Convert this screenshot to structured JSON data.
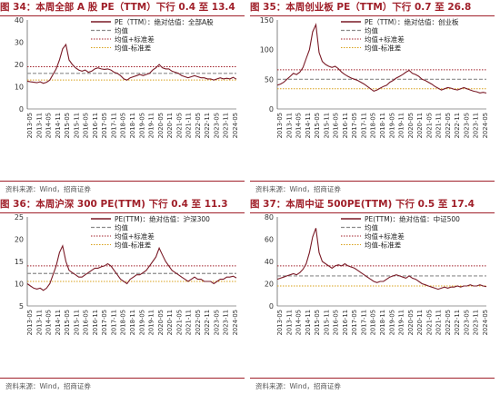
{
  "colors": {
    "title": "#a0202a",
    "pe_line": "#7a1a26",
    "mean_line": "#8c8c8c",
    "plus_std": "#a0202a",
    "minus_std": "#d8a018"
  },
  "source_text": "资料来源：Wind，招商证券",
  "panels": [
    {
      "title": "图 34：本周全部 A 股 PE（TTM）下行 0.4 至 13.4",
      "source": "资料来源：Wind，招商证券",
      "chart_data": {
        "type": "line",
        "ylim": [
          0,
          40
        ],
        "yticks": [
          0,
          10,
          20,
          30,
          40
        ],
        "x_tick_labels": [
          "2013-05",
          "2013-11",
          "2014-05",
          "2014-11",
          "2015-05",
          "2015-11",
          "2016-05",
          "2016-11",
          "2017-05",
          "2017-11",
          "2018-05",
          "2018-11",
          "2019-05",
          "2019-11",
          "2020-05",
          "2020-11",
          "2021-05",
          "2021-11",
          "2022-05",
          "2022-11",
          "2023-05",
          "2023-11",
          "2024-05"
        ],
        "legend": [
          "PE（TTM）：绝对估值：全部A股",
          "均值",
          "均值+标准差",
          "均值-标准差"
        ],
        "mean": 16.0,
        "plus_std": 19.0,
        "minus_std": 13.0,
        "series": [
          {
            "name": "PE（TTM）：绝对估值：全部A股",
            "values": [
              12.5,
              12.2,
              12.0,
              11.8,
              12.2,
              11.5,
              12.0,
              13.0,
              15.5,
              18.0,
              22.0,
              27.0,
              29.0,
              22.0,
              20.0,
              18.5,
              17.5,
              17.0,
              17.5,
              16.5,
              17.0,
              18.0,
              18.5,
              18.0,
              17.8,
              18.0,
              17.5,
              16.5,
              16.0,
              15.0,
              13.5,
              13.0,
              14.0,
              14.5,
              15.0,
              15.5,
              15.0,
              15.5,
              16.0,
              17.5,
              18.5,
              20.0,
              18.5,
              18.0,
              18.0,
              17.0,
              16.5,
              16.0,
              15.0,
              14.5,
              14.0,
              14.5,
              15.0,
              14.5,
              14.0,
              14.0,
              13.5,
              13.5,
              13.0,
              13.5,
              14.0,
              13.5,
              13.8,
              13.5,
              14.2,
              13.4
            ]
          }
        ]
      }
    },
    {
      "title": "图 35：本周创业板 PE（TTM）下行 0.7 至 26.8",
      "source": "资料来源：Wind，招商证券",
      "chart_data": {
        "type": "line",
        "ylim": [
          0,
          150
        ],
        "yticks": [
          0,
          50,
          100,
          150
        ],
        "x_tick_labels": [
          "2013-05",
          "2013-11",
          "2014-05",
          "2014-11",
          "2015-05",
          "2015-11",
          "2016-05",
          "2016-11",
          "2017-05",
          "2017-11",
          "2018-05",
          "2018-11",
          "2019-05",
          "2019-11",
          "2020-05",
          "2020-11",
          "2021-05",
          "2021-11",
          "2022-05",
          "2022-11",
          "2023-05",
          "2023-11",
          "2024-05"
        ],
        "legend": [
          "PE（TTM）：绝对估值：创业板",
          "均值",
          "均值+标准差",
          "均值-标准差"
        ],
        "mean": 50.0,
        "plus_std": 66.0,
        "minus_std": 34.0,
        "series": [
          {
            "name": "PE（TTM）：绝对估值：创业板",
            "values": [
              40,
              42,
              45,
              50,
              55,
              60,
              58,
              62,
              70,
              85,
              100,
              130,
              142,
              95,
              80,
              75,
              72,
              70,
              72,
              68,
              62,
              58,
              55,
              52,
              50,
              48,
              45,
              42,
              38,
              34,
              30,
              32,
              35,
              38,
              40,
              45,
              48,
              52,
              55,
              58,
              62,
              65,
              60,
              58,
              55,
              50,
              48,
              45,
              42,
              38,
              35,
              32,
              34,
              36,
              35,
              33,
              32,
              34,
              36,
              34,
              32,
              30,
              29,
              27,
              28,
              26.8
            ]
          }
        ]
      }
    },
    {
      "title": "图 36：本周沪深 300 PE(TTM) 下行 0.4 至 11.3",
      "source": "资料来源：Wind，招商证券",
      "chart_data": {
        "type": "line",
        "ylim": [
          5,
          25
        ],
        "yticks": [
          5,
          10,
          15,
          20,
          25
        ],
        "x_tick_labels": [
          "2013-05",
          "2013-11",
          "2014-05",
          "2014-11",
          "2015-05",
          "2015-11",
          "2016-05",
          "2016-11",
          "2017-05",
          "2017-11",
          "2018-05",
          "2018-11",
          "2019-05",
          "2019-11",
          "2020-05",
          "2020-11",
          "2021-05",
          "2021-11",
          "2022-05",
          "2022-11",
          "2023-05",
          "2023-11",
          "2024-05"
        ],
        "legend": [
          "PE(TTM)：绝对估值：沪深300",
          "均值",
          "均值+标准差",
          "均值-标准差"
        ],
        "mean": 12.3,
        "plus_std": 14.0,
        "minus_std": 10.5,
        "series": [
          {
            "name": "PE(TTM)：绝对估值：沪深300",
            "values": [
              10.0,
              9.5,
              9.0,
              8.8,
              9.0,
              8.5,
              9.0,
              10.0,
              12.0,
              14.0,
              17.0,
              18.5,
              15.0,
              13.0,
              12.5,
              12.0,
              11.5,
              11.5,
              12.0,
              12.5,
              13.0,
              13.5,
              13.5,
              13.8,
              14.0,
              14.5,
              14.0,
              13.0,
              12.0,
              11.0,
              10.5,
              10.0,
              11.0,
              11.5,
              12.0,
              12.0,
              12.5,
              13.0,
              14.0,
              15.0,
              16.0,
              18.0,
              16.5,
              15.0,
              14.0,
              13.0,
              12.5,
              12.0,
              11.5,
              11.0,
              10.5,
              11.0,
              11.5,
              11.0,
              11.0,
              10.5,
              10.5,
              10.5,
              10.0,
              10.5,
              11.0,
              11.0,
              11.5,
              11.5,
              11.7,
              11.3
            ]
          }
        ]
      }
    },
    {
      "title": "图 37：本周中证 500PE(TTM) 下行 0.5 至 17.4",
      "source": "资料来源：Wind，招商证券",
      "chart_data": {
        "type": "line",
        "ylim": [
          0,
          80
        ],
        "yticks": [
          0,
          20,
          40,
          60,
          80
        ],
        "x_tick_labels": [
          "2013-05",
          "2013-11",
          "2014-05",
          "2014-11",
          "2015-05",
          "2015-11",
          "2016-05",
          "2016-11",
          "2017-05",
          "2017-11",
          "2018-05",
          "2018-11",
          "2019-05",
          "2019-11",
          "2020-05",
          "2020-11",
          "2021-05",
          "2021-11",
          "2022-05",
          "2022-11",
          "2023-05",
          "2023-11",
          "2024-05"
        ],
        "legend": [
          "PE(TTM)：绝对估值：中证500",
          "均值",
          "均值+标准差",
          "均值-标准差"
        ],
        "mean": 27.0,
        "plus_std": 36.0,
        "minus_std": 18.0,
        "series": [
          {
            "name": "PE(TTM)：绝对估值：中证500",
            "values": [
              24,
              25,
              26,
              27,
              28,
              29,
              28,
              30,
              33,
              38,
              48,
              62,
              70,
              48,
              40,
              38,
              36,
              34,
              36,
              37,
              36,
              38,
              36,
              35,
              34,
              32,
              30,
              28,
              26,
              24,
              22,
              21,
              22,
              22,
              24,
              26,
              27,
              28,
              27,
              26,
              25,
              27,
              25,
              24,
              22,
              20,
              19,
              18,
              17,
              16,
              15,
              16,
              17,
              16,
              17,
              17,
              18,
              17,
              18,
              18,
              19,
              18,
              18,
              19,
              18.0,
              17.4
            ]
          }
        ]
      }
    }
  ]
}
